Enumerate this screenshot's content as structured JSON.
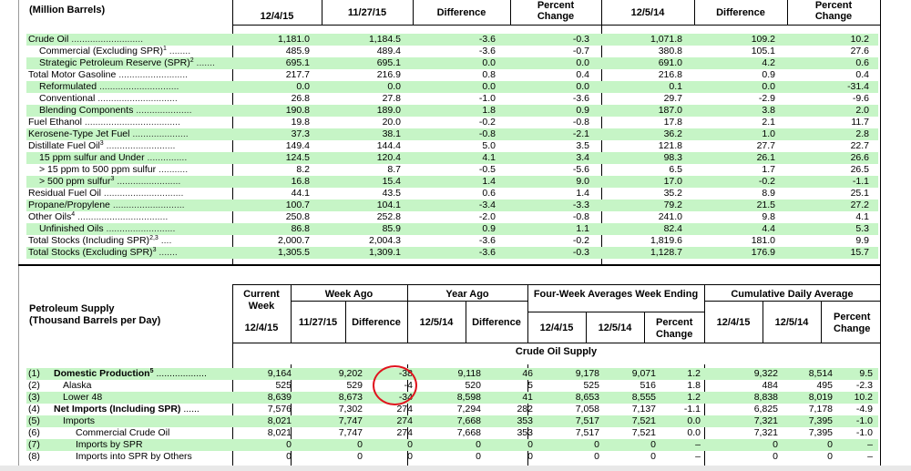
{
  "top": {
    "title": "(Million Barrels)",
    "headers": [
      "12/4/15",
      "11/27/15",
      "Difference",
      "Percent Change",
      "12/5/14",
      "Difference",
      "Percent Change"
    ],
    "rows": [
      {
        "label": "Crude Oil",
        "sup": "",
        "indent": 0,
        "v": [
          "1,181.0",
          "1,184.5",
          "-3.6",
          "-0.3",
          "1,071.8",
          "109.2",
          "10.2"
        ]
      },
      {
        "label": "Commercial (Excluding SPR)",
        "sup": "1",
        "indent": 1,
        "v": [
          "485.9",
          "489.4",
          "-3.6",
          "-0.7",
          "380.8",
          "105.1",
          "27.6"
        ]
      },
      {
        "label": "Strategic Petroleum Reserve (SPR)",
        "sup": "2",
        "indent": 1,
        "v": [
          "695.1",
          "695.1",
          "0.0",
          "0.0",
          "691.0",
          "4.2",
          "0.6"
        ]
      },
      {
        "label": "Total Motor Gasoline",
        "sup": "",
        "indent": 0,
        "v": [
          "217.7",
          "216.9",
          "0.8",
          "0.4",
          "216.8",
          "0.9",
          "0.4"
        ]
      },
      {
        "label": "Reformulated",
        "sup": "",
        "indent": 1,
        "v": [
          "0.0",
          "0.0",
          "0.0",
          "0.0",
          "0.1",
          "0.0",
          "-31.4"
        ]
      },
      {
        "label": "Conventional",
        "sup": "",
        "indent": 1,
        "v": [
          "26.8",
          "27.8",
          "-1.0",
          "-3.6",
          "29.7",
          "-2.9",
          "-9.6"
        ]
      },
      {
        "label": "Blending Components",
        "sup": "",
        "indent": 1,
        "v": [
          "190.8",
          "189.0",
          "1.8",
          "0.9",
          "187.0",
          "3.8",
          "2.0"
        ]
      },
      {
        "label": "Fuel Ethanol",
        "sup": "",
        "indent": 0,
        "v": [
          "19.8",
          "20.0",
          "-0.2",
          "-0.8",
          "17.8",
          "2.1",
          "11.7"
        ]
      },
      {
        "label": "Kerosene-Type Jet Fuel",
        "sup": "",
        "indent": 0,
        "v": [
          "37.3",
          "38.1",
          "-0.8",
          "-2.1",
          "36.2",
          "1.0",
          "2.8"
        ]
      },
      {
        "label": "Distillate Fuel Oil",
        "sup": "3",
        "indent": 0,
        "v": [
          "149.4",
          "144.4",
          "5.0",
          "3.5",
          "121.8",
          "27.7",
          "22.7"
        ]
      },
      {
        "label": "15 ppm sulfur and Under",
        "sup": "",
        "indent": 1,
        "v": [
          "124.5",
          "120.4",
          "4.1",
          "3.4",
          "98.3",
          "26.1",
          "26.6"
        ]
      },
      {
        "label": "> 15 ppm to 500 ppm sulfur",
        "sup": "",
        "indent": 1,
        "v": [
          "8.2",
          "8.7",
          "-0.5",
          "-5.6",
          "6.5",
          "1.7",
          "26.5"
        ]
      },
      {
        "label": "> 500 ppm sulfur",
        "sup": "3",
        "indent": 1,
        "v": [
          "16.8",
          "15.4",
          "1.4",
          "9.0",
          "17.0",
          "-0.2",
          "-1.1"
        ]
      },
      {
        "label": "Residual Fuel Oil",
        "sup": "",
        "indent": 0,
        "v": [
          "44.1",
          "43.5",
          "0.6",
          "1.4",
          "35.2",
          "8.9",
          "25.1"
        ]
      },
      {
        "label": "Propane/Propylene",
        "sup": "",
        "indent": 0,
        "v": [
          "100.7",
          "104.1",
          "-3.4",
          "-3.3",
          "79.2",
          "21.5",
          "27.2"
        ]
      },
      {
        "label": "Other Oils",
        "sup": "4",
        "indent": 0,
        "v": [
          "250.8",
          "252.8",
          "-2.0",
          "-0.8",
          "241.0",
          "9.8",
          "4.1"
        ]
      },
      {
        "label": "Unfinished Oils",
        "sup": "",
        "indent": 1,
        "v": [
          "86.8",
          "85.9",
          "0.9",
          "1.1",
          "82.4",
          "4.4",
          "5.3"
        ]
      },
      {
        "label": "Total Stocks (Including SPR)",
        "sup": "2,3",
        "indent": 0,
        "v": [
          "2,000.7",
          "2,004.3",
          "-3.6",
          "-0.2",
          "1,819.6",
          "181.0",
          "9.9"
        ]
      },
      {
        "label": "Total Stocks (Excluding SPR)",
        "sup": "3",
        "indent": 0,
        "v": [
          "1,305.5",
          "1,309.1",
          "-3.6",
          "-0.3",
          "1,128.7",
          "176.9",
          "15.7"
        ]
      }
    ]
  },
  "bottom": {
    "title_line1": "Petroleum Supply",
    "title_line2": "(Thousand Barrels per Day)",
    "groups": {
      "current_week": "Current Week",
      "week_ago": "Week Ago",
      "year_ago": "Year Ago",
      "four_week": "Four-Week Averages Week Ending",
      "cumulative": "Cumulative Daily Average"
    },
    "subheaders": [
      "12/4/15",
      "11/27/15",
      "Difference",
      "12/5/14",
      "Difference",
      "12/4/15",
      "12/5/14",
      "Percent Change",
      "12/4/15",
      "12/5/14",
      "Percent Change"
    ],
    "section": "Crude Oil Supply",
    "rows": [
      {
        "num": "(1)",
        "label": "Domestic Production",
        "sup": "5",
        "bold": true,
        "indent": 0,
        "v": [
          "9,164",
          "9,202",
          "-38",
          "9,118",
          "46",
          "9,178",
          "9,071",
          "1.2",
          "9,322",
          "8,514",
          "9.5"
        ]
      },
      {
        "num": "(2)",
        "label": "Alaska",
        "sup": "",
        "bold": false,
        "indent": 1,
        "v": [
          "525",
          "529",
          "-4",
          "520",
          "5",
          "525",
          "516",
          "1.8",
          "484",
          "495",
          "-2.3"
        ]
      },
      {
        "num": "(3)",
        "label": "Lower 48",
        "sup": "",
        "bold": false,
        "indent": 1,
        "v": [
          "8,639",
          "8,673",
          "-34",
          "8,598",
          "41",
          "8,653",
          "8,555",
          "1.2",
          "8,838",
          "8,019",
          "10.2"
        ]
      },
      {
        "num": "(4)",
        "label": "Net Imports (Including SPR)",
        "sup": "",
        "bold": true,
        "indent": 0,
        "v": [
          "7,576",
          "7,302",
          "274",
          "7,294",
          "282",
          "7,058",
          "7,137",
          "-1.1",
          "6,825",
          "7,178",
          "-4.9"
        ]
      },
      {
        "num": "(5)",
        "label": "Imports",
        "sup": "",
        "bold": false,
        "indent": 1,
        "v": [
          "8,021",
          "7,747",
          "274",
          "7,668",
          "353",
          "7,517",
          "7,521",
          "0.0",
          "7,321",
          "7,395",
          "-1.0"
        ]
      },
      {
        "num": "(6)",
        "label": "Commercial Crude Oil",
        "sup": "",
        "bold": false,
        "indent": 2,
        "v": [
          "8,021",
          "7,747",
          "274",
          "7,668",
          "353",
          "7,517",
          "7,521",
          "0.0",
          "7,321",
          "7,395",
          "-1.0"
        ]
      },
      {
        "num": "(7)",
        "label": "Imports by SPR",
        "sup": "",
        "bold": false,
        "indent": 2,
        "v": [
          "0",
          "0",
          "0",
          "0",
          "0",
          "0",
          "0",
          "–",
          "0",
          "0",
          "–"
        ]
      },
      {
        "num": "(8)",
        "label": "Imports into SPR by Others",
        "sup": "",
        "bold": false,
        "indent": 2,
        "v": [
          "0",
          "0",
          "0",
          "0",
          "0",
          "0",
          "0",
          "–",
          "0",
          "0",
          "–"
        ]
      }
    ]
  },
  "annotation_color": "#e0141e"
}
